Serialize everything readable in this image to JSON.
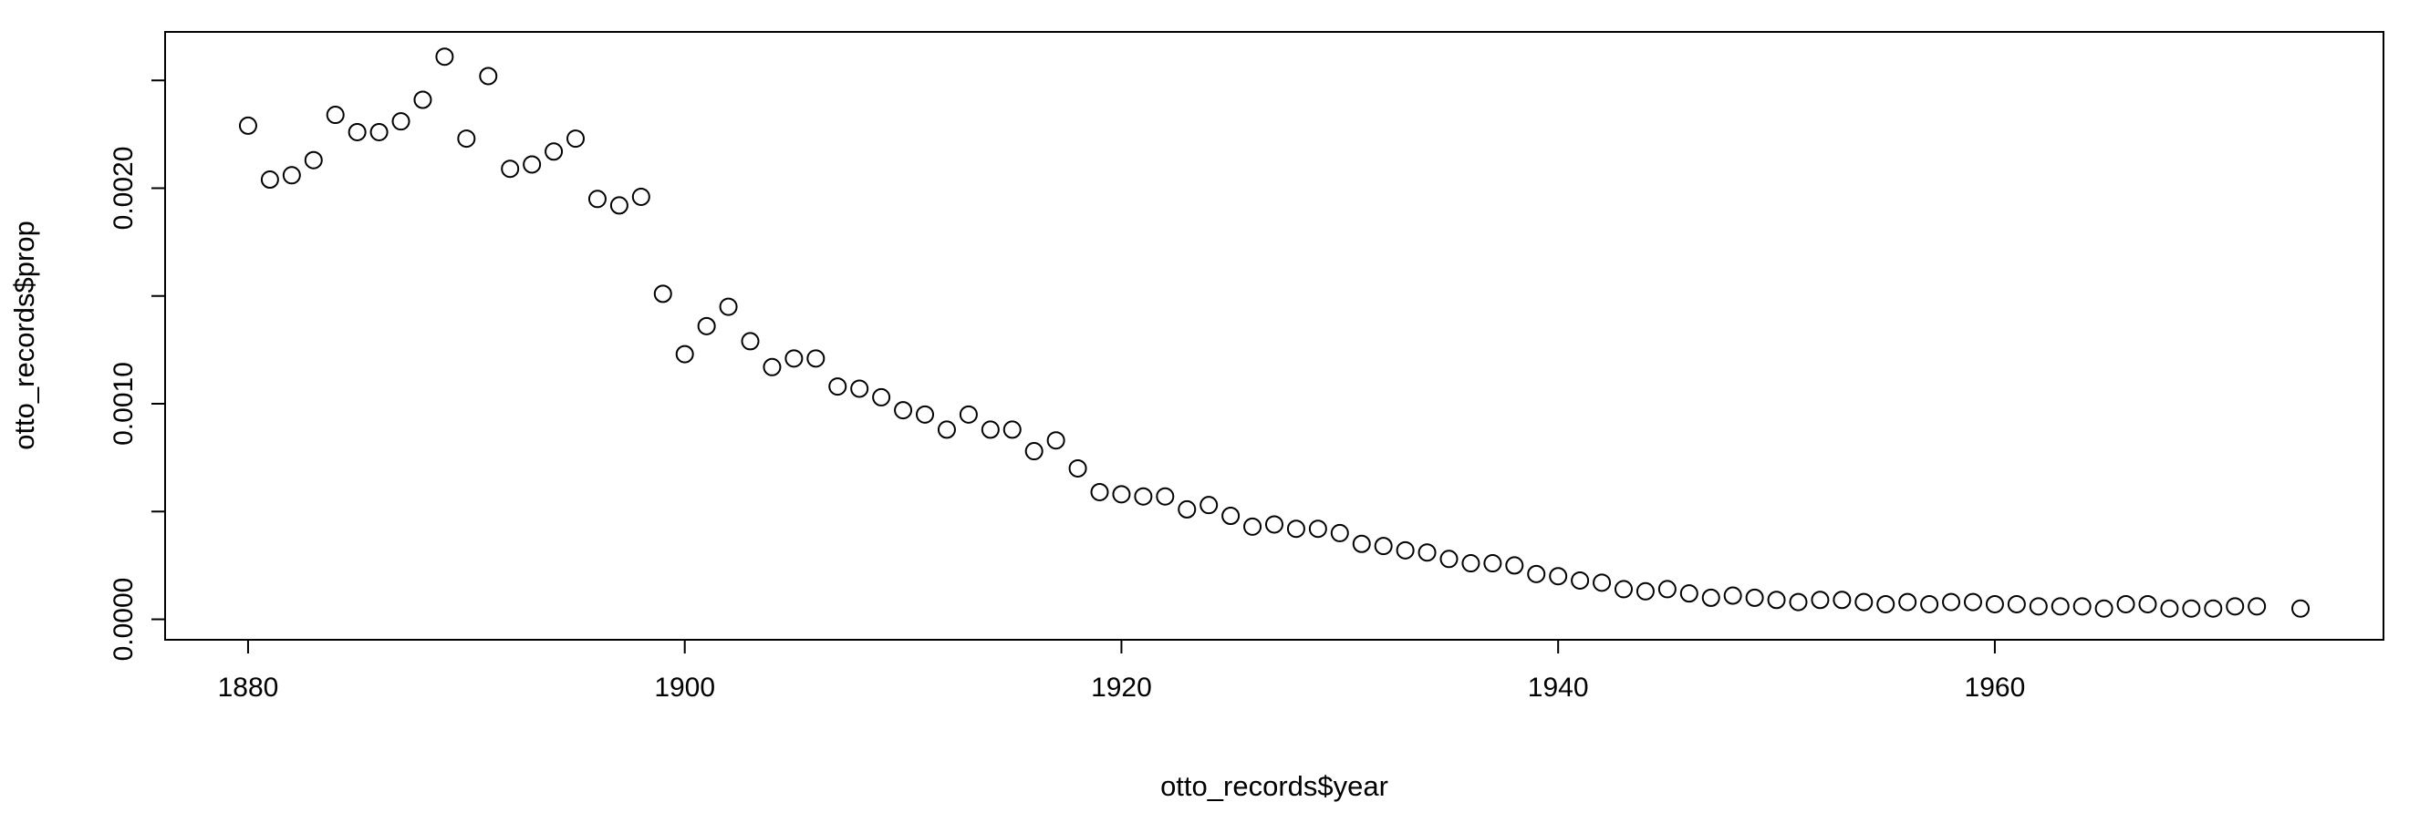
{
  "chart_data": {
    "type": "scatter",
    "title": "",
    "xlabel": "otto_records$year",
    "ylabel": "otto_records$prop",
    "xlim": [
      1876.2,
      1977.8
    ],
    "ylim": [
      -9.5e-05,
      0.002725
    ],
    "xticks": [
      "1880",
      "1900",
      "1920",
      "1940",
      "1960"
    ],
    "yticks": [
      "0.0000",
      "0.0010",
      "0.0020"
    ],
    "grid": false,
    "legend": "none",
    "marker": "open-circle",
    "x": [
      1880,
      1881,
      1882,
      1883,
      1884,
      1885,
      1886,
      1887,
      1888,
      1889,
      1890,
      1891,
      1892,
      1893,
      1894,
      1895,
      1896,
      1897,
      1898,
      1899,
      1900,
      1901,
      1902,
      1903,
      1904,
      1905,
      1906,
      1907,
      1908,
      1909,
      1910,
      1911,
      1912,
      1913,
      1914,
      1915,
      1916,
      1917,
      1918,
      1919,
      1920,
      1921,
      1922,
      1923,
      1924,
      1925,
      1926,
      1927,
      1928,
      1929,
      1930,
      1931,
      1932,
      1933,
      1934,
      1935,
      1936,
      1937,
      1938,
      1939,
      1940,
      1941,
      1942,
      1943,
      1944,
      1945,
      1946,
      1947,
      1948,
      1949,
      1950,
      1951,
      1952,
      1953,
      1954,
      1955,
      1956,
      1957,
      1958,
      1959,
      1960,
      1961,
      1962,
      1963,
      1964,
      1965,
      1966,
      1967,
      1968,
      1969,
      1970,
      1971,
      1972,
      1974
    ],
    "y": [
      0.00229,
      0.00204,
      0.00206,
      0.00213,
      0.00234,
      0.00226,
      0.00226,
      0.00231,
      0.00241,
      0.00261,
      0.00223,
      0.00252,
      0.00209,
      0.00211,
      0.00217,
      0.00223,
      0.00195,
      0.00192,
      0.00196,
      0.00151,
      0.00123,
      0.00136,
      0.00145,
      0.00129,
      0.00117,
      0.00121,
      0.00121,
      0.00108,
      0.00107,
      0.00103,
      0.00097,
      0.00095,
      0.00088,
      0.00095,
      0.00088,
      0.00088,
      0.00078,
      0.00083,
      0.0007,
      0.00059,
      0.00058,
      0.00057,
      0.00057,
      0.00051,
      0.00053,
      0.00048,
      0.00043,
      0.00044,
      0.00042,
      0.00042,
      0.0004,
      0.00035,
      0.00034,
      0.00032,
      0.00031,
      0.00028,
      0.00026,
      0.00026,
      0.00025,
      0.00021,
      0.0002,
      0.00018,
      0.00017,
      0.00014,
      0.00013,
      0.00014,
      0.00012,
      0.0001,
      0.00011,
      0.0001,
      9e-05,
      8e-05,
      9e-05,
      9e-05,
      8e-05,
      7e-05,
      8e-05,
      7e-05,
      8e-05,
      8e-05,
      7e-05,
      7e-05,
      6e-05,
      6e-05,
      6e-05,
      5e-05,
      7e-05,
      7e-05,
      5e-05,
      5e-05,
      5e-05,
      6e-05,
      6e-05,
      5e-05
    ]
  }
}
